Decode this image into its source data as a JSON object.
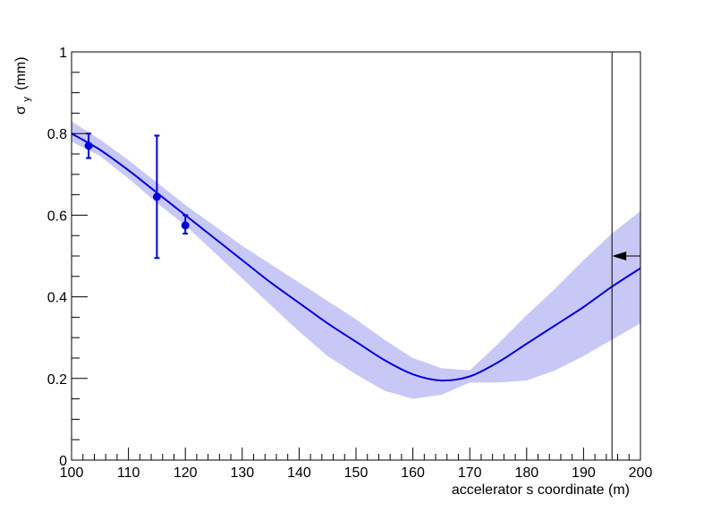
{
  "chart_data": {
    "type": "line",
    "xlabel": "accelerator s coordinate (m)",
    "ylabel": {
      "main": "σ",
      "sub": "y",
      "unit": "(mm)"
    },
    "xlim": [
      100,
      200
    ],
    "ylim": [
      0,
      1
    ],
    "x_tick_labels": [
      "100",
      "110",
      "120",
      "130",
      "140",
      "150",
      "160",
      "170",
      "180",
      "190",
      "200"
    ],
    "y_tick_labels": [
      "0",
      "0.2",
      "0.4",
      "0.6",
      "0.8",
      "1"
    ],
    "series": [
      {
        "kind": "fit-line",
        "color": "#0000dd",
        "x": [
          100,
          105,
          110,
          115,
          120,
          125,
          130,
          135,
          140,
          145,
          150,
          155,
          160,
          165,
          170,
          175,
          180,
          185,
          190,
          195,
          200
        ],
        "y": [
          0.8,
          0.76,
          0.71,
          0.655,
          0.6,
          0.545,
          0.49,
          0.435,
          0.385,
          0.335,
          0.29,
          0.245,
          0.21,
          0.195,
          0.205,
          0.24,
          0.285,
          0.33,
          0.375,
          0.425,
          0.47
        ]
      },
      {
        "kind": "confidence-band",
        "color": "#c8c8f6",
        "x": [
          100,
          105,
          110,
          115,
          120,
          125,
          130,
          135,
          140,
          145,
          150,
          155,
          160,
          165,
          170,
          175,
          180,
          185,
          190,
          195,
          200
        ],
        "lower": [
          0.78,
          0.745,
          0.69,
          0.63,
          0.575,
          0.51,
          0.445,
          0.38,
          0.315,
          0.255,
          0.21,
          0.17,
          0.15,
          0.16,
          0.19,
          0.19,
          0.195,
          0.22,
          0.255,
          0.295,
          0.335
        ],
        "upper": [
          0.83,
          0.785,
          0.735,
          0.68,
          0.625,
          0.575,
          0.525,
          0.48,
          0.435,
          0.39,
          0.345,
          0.295,
          0.25,
          0.225,
          0.22,
          0.285,
          0.355,
          0.42,
          0.49,
          0.555,
          0.61
        ]
      },
      {
        "kind": "points",
        "color": "#0000dd",
        "x": [
          103,
          115,
          120
        ],
        "y": [
          0.77,
          0.645,
          0.575
        ],
        "err_low": [
          0.03,
          0.15,
          0.02
        ],
        "err_high": [
          0.03,
          0.15,
          0.025
        ]
      }
    ],
    "annotations": {
      "vline_x": 195,
      "arrow": {
        "x_from": 200,
        "x_to": 195,
        "y": 0.5,
        "direction": "left"
      }
    },
    "grid": false
  }
}
